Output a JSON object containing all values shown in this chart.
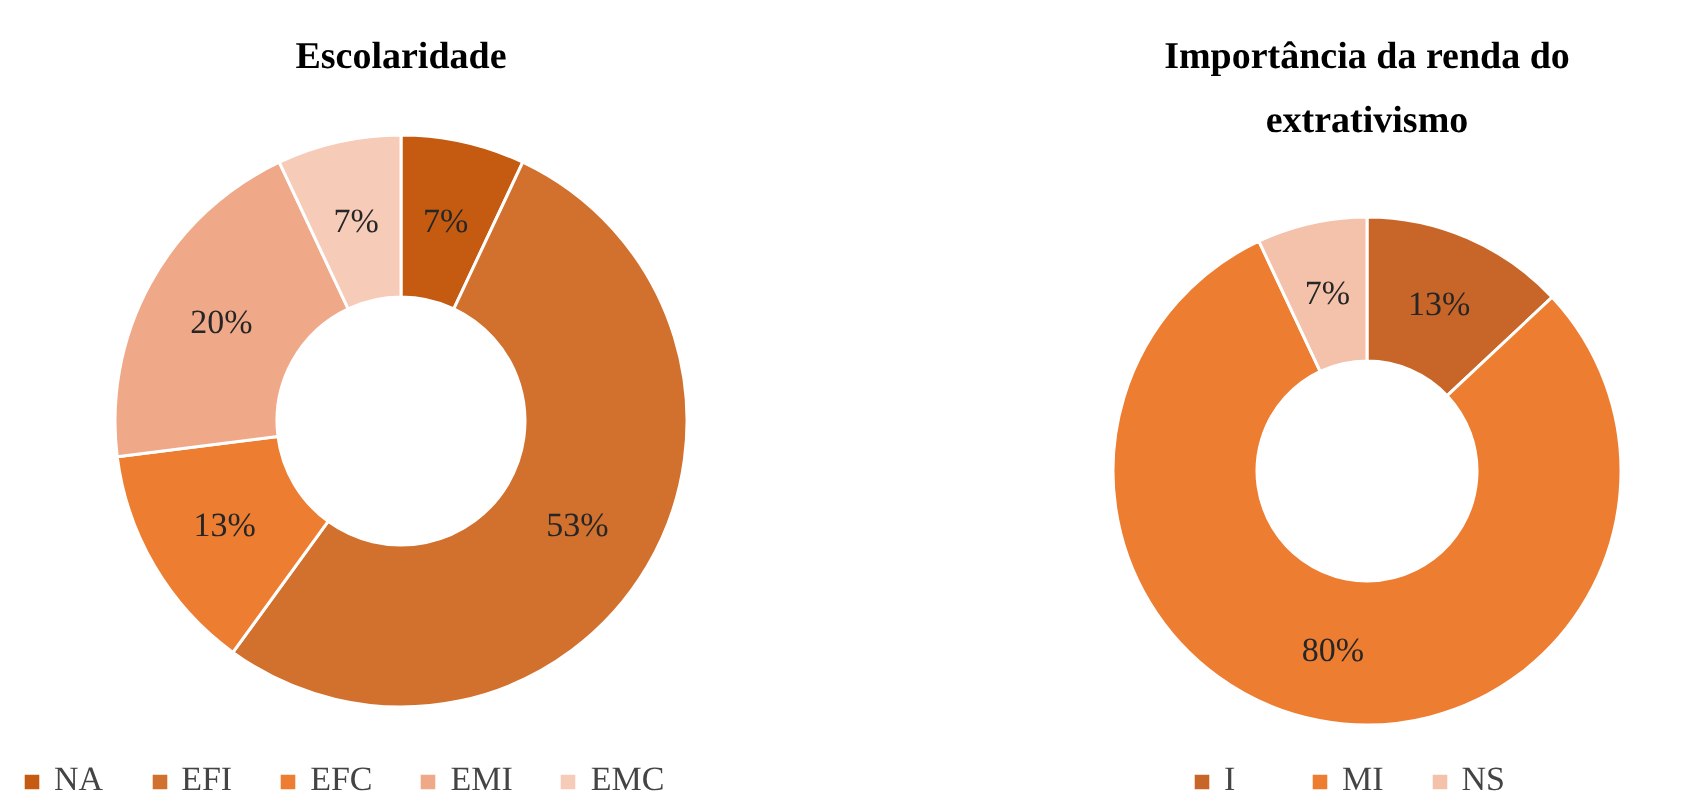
{
  "chart_data": [
    {
      "type": "donut",
      "title": "Escolaridade",
      "categories": [
        "NA",
        "EFI",
        "EFC",
        "EMI",
        "EMC"
      ],
      "values": [
        7,
        53,
        13,
        20,
        7
      ],
      "value_labels": [
        "7%",
        "53%",
        "13%",
        "20%",
        "7%"
      ],
      "colors": [
        "#c55a11",
        "#d2702e",
        "#ed7d31",
        "#f0a988",
        "#f6cbb8"
      ],
      "legend": "bottom"
    },
    {
      "type": "donut",
      "title": "Importância da renda do extrativismo",
      "categories": [
        "I",
        "MI",
        "NS"
      ],
      "values": [
        13,
        80,
        7
      ],
      "value_labels": [
        "13%",
        "80%",
        "7%"
      ],
      "colors": [
        "#c8662a",
        "#ed7d31",
        "#f4c2aa"
      ],
      "legend": "bottom"
    }
  ]
}
